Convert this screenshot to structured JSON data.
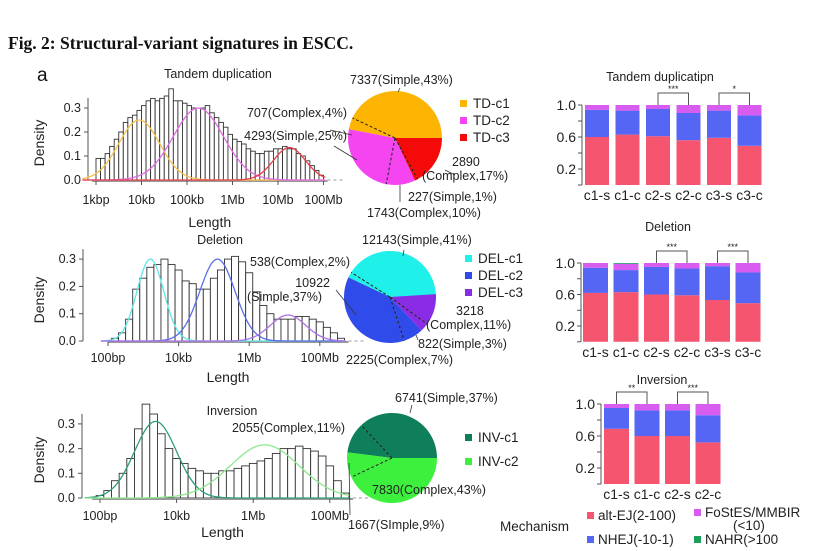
{
  "figure": {
    "title": "Fig. 2: Structural-variant signatures in ESCC.",
    "panel_label": "a"
  },
  "chart_data": [
    {
      "type": "bar",
      "subtype": "histogram",
      "title": "Tandem duplication",
      "xlabel": "Length",
      "ylabel": "Density",
      "x_scale": "log10",
      "xticks": [
        {
          "log10": 3,
          "label": "1kbp"
        },
        {
          "log10": 4,
          "label": "10kb"
        },
        {
          "log10": 5,
          "label": "100kb"
        },
        {
          "log10": 6,
          "label": "1Mb"
        },
        {
          "log10": 7,
          "label": "10Mb"
        },
        {
          "log10": 8,
          "label": "100Mb"
        }
      ],
      "yticks": [
        {
          "value": 0,
          "label": "0.0"
        },
        {
          "value": 0.1,
          "label": "0.1"
        },
        {
          "value": 0.2,
          "label": "0.2"
        },
        {
          "value": 0.3,
          "label": "0.3"
        }
      ],
      "ylim": [
        0,
        0.38
      ],
      "bins": {
        "log10_start": 3.0,
        "log10_width": 0.1,
        "density": [
          0.09,
          0.09,
          0.11,
          0.14,
          0.17,
          0.2,
          0.24,
          0.26,
          0.27,
          0.29,
          0.31,
          0.33,
          0.34,
          0.33,
          0.34,
          0.35,
          0.38,
          0.33,
          0.33,
          0.32,
          0.31,
          0.3,
          0.3,
          0.3,
          0.31,
          0.28,
          0.26,
          0.24,
          0.22,
          0.19,
          0.17,
          0.16,
          0.15,
          0.13,
          0.12,
          0.11,
          0.11,
          0.12,
          0.12,
          0.13,
          0.13,
          0.14,
          0.13,
          0.13,
          0.11,
          0.1,
          0.08,
          0.06,
          0.04,
          0.02
        ]
      },
      "components": [
        {
          "name": "TD-c1",
          "color": "#F7C24A",
          "log10_mean": 3.95,
          "log10_sd": 0.45,
          "peak_density": 0.25
        },
        {
          "name": "TD-c2",
          "color": "#E36BE6",
          "log10_mean": 5.25,
          "log10_sd": 0.55,
          "peak_density": 0.3
        },
        {
          "name": "TD-c3",
          "color": "#E8404A",
          "log10_mean": 7.25,
          "log10_sd": 0.35,
          "peak_density": 0.135
        }
      ]
    },
    {
      "type": "pie",
      "clusters": [
        {
          "name": "TD-c1",
          "color": "#FDB402"
        },
        {
          "name": "TD-c2",
          "color": "#F545F0"
        },
        {
          "name": "TD-c3",
          "color": "#F50A0A"
        }
      ],
      "slices": [
        {
          "cluster": 0,
          "kind": "Simple",
          "count": 7337,
          "percent": 43,
          "label_lines": [
            "7337(Simple,43%)"
          ]
        },
        {
          "cluster": 0,
          "kind": "Complex",
          "count": 707,
          "percent": 4,
          "label_lines": [
            "707(Complex,4%)"
          ]
        },
        {
          "cluster": 1,
          "kind": "Simple",
          "count": 4293,
          "percent": 25,
          "label_lines": [
            "4293(Simple,25%)"
          ]
        },
        {
          "cluster": 1,
          "kind": "Complex",
          "count": 1743,
          "percent": 10,
          "label_lines": [
            "1743(Complex,10%)"
          ]
        },
        {
          "cluster": 2,
          "kind": "Simple",
          "count": 227,
          "percent": 1,
          "label_lines": [
            "227(Simple,1%)"
          ]
        },
        {
          "cluster": 2,
          "kind": "Complex",
          "count": 2890,
          "percent": 17,
          "label_lines": [
            "2890",
            "(Complex,17%)"
          ]
        }
      ]
    },
    {
      "type": "bar",
      "subtype": "histogram",
      "title": "Deletion",
      "xlabel": "Length",
      "ylabel": "Density",
      "x_scale": "log10",
      "xticks": [
        {
          "log10": 2,
          "label": "100bp"
        },
        {
          "log10": 4,
          "label": "10kb"
        },
        {
          "log10": 6,
          "label": "1Mb"
        },
        {
          "log10": 8,
          "label": "100Mb"
        }
      ],
      "yticks": [
        {
          "value": 0,
          "label": "0.0"
        },
        {
          "value": 0.1,
          "label": "0.1"
        },
        {
          "value": 0.2,
          "label": "0.2"
        },
        {
          "value": 0.3,
          "label": "0.3"
        }
      ],
      "ylim": [
        0,
        0.32
      ],
      "bins": {
        "log10_start": 2.1,
        "log10_width": 0.2,
        "density": [
          0.01,
          0.03,
          0.08,
          0.19,
          0.23,
          0.27,
          0.28,
          0.3,
          0.28,
          0.26,
          0.22,
          0.21,
          0.19,
          0.19,
          0.23,
          0.26,
          0.3,
          0.31,
          0.29,
          0.25,
          0.18,
          0.13,
          0.1,
          0.08,
          0.08,
          0.08,
          0.09,
          0.09,
          0.08,
          0.07,
          0.05,
          0.03,
          0.01
        ]
      },
      "components": [
        {
          "name": "DEL-c1",
          "color": "#5FE6E6",
          "log10_mean": 3.2,
          "log10_sd": 0.38,
          "peak_density": 0.3
        },
        {
          "name": "DEL-c2",
          "color": "#5A6FE8",
          "log10_mean": 5.1,
          "log10_sd": 0.5,
          "peak_density": 0.3
        },
        {
          "name": "DEL-c3",
          "color": "#B070E8",
          "log10_mean": 7.1,
          "log10_sd": 0.5,
          "peak_density": 0.095
        }
      ]
    },
    {
      "type": "pie",
      "clusters": [
        {
          "name": "DEL-c1",
          "color": "#1FF0EA"
        },
        {
          "name": "DEL-c2",
          "color": "#2F4BEA"
        },
        {
          "name": "DEL-c3",
          "color": "#8A2BE6"
        }
      ],
      "slices": [
        {
          "cluster": 0,
          "kind": "Simple",
          "count": 12143,
          "percent": 41,
          "label_lines": [
            "12143(Simple,41%)"
          ]
        },
        {
          "cluster": 0,
          "kind": "Complex",
          "count": 538,
          "percent": 2,
          "label_lines": [
            "538(Complex,2%)"
          ]
        },
        {
          "cluster": 1,
          "kind": "Simple",
          "count": 10922,
          "percent": 37,
          "label_lines": [
            "10922",
            "(Simple,37%)"
          ]
        },
        {
          "cluster": 1,
          "kind": "Complex",
          "count": 2225,
          "percent": 7,
          "label_lines": [
            "2225(Complex,7%)"
          ]
        },
        {
          "cluster": 2,
          "kind": "Simple",
          "count": 822,
          "percent": 3,
          "label_lines": [
            "822(Simple,3%)"
          ]
        },
        {
          "cluster": 2,
          "kind": "Complex",
          "count": 3218,
          "percent": 11,
          "label_lines": [
            "3218",
            "(Complex,11%)"
          ]
        }
      ]
    },
    {
      "type": "bar",
      "subtype": "histogram",
      "title": "Inversion",
      "xlabel": "Length",
      "ylabel": "Density",
      "x_scale": "log10",
      "xticks": [
        {
          "log10": 2,
          "label": "100bp"
        },
        {
          "log10": 4,
          "label": "10kb"
        },
        {
          "log10": 6,
          "label": "1Mb"
        },
        {
          "log10": 8,
          "label": "100Mb"
        }
      ],
      "yticks": [
        {
          "value": 0,
          "label": "0.0"
        },
        {
          "value": 0.1,
          "label": "0.1"
        },
        {
          "value": 0.2,
          "label": "0.2"
        },
        {
          "value": 0.3,
          "label": "0.3"
        }
      ],
      "ylim": [
        0,
        0.38
      ],
      "bins": {
        "log10_start": 1.9,
        "log10_width": 0.2,
        "density": [
          0.01,
          0.03,
          0.07,
          0.1,
          0.16,
          0.28,
          0.38,
          0.34,
          0.26,
          0.2,
          0.16,
          0.14,
          0.12,
          0.11,
          0.1,
          0.1,
          0.11,
          0.11,
          0.12,
          0.13,
          0.14,
          0.15,
          0.16,
          0.18,
          0.2,
          0.2,
          0.21,
          0.2,
          0.19,
          0.17,
          0.13,
          0.07,
          0.02
        ]
      },
      "components": [
        {
          "name": "INV-c1",
          "color": "#2E9E7A",
          "log10_mean": 3.45,
          "log10_sd": 0.55,
          "peak_density": 0.31
        },
        {
          "name": "INV-c2",
          "color": "#8EE88E",
          "log10_mean": 6.3,
          "log10_sd": 0.9,
          "peak_density": 0.215
        }
      ]
    },
    {
      "type": "pie",
      "clusters": [
        {
          "name": "INV-c1",
          "color": "#0E7F5A"
        },
        {
          "name": "INV-c2",
          "color": "#3DF03D"
        }
      ],
      "slices": [
        {
          "cluster": 0,
          "kind": "Simple",
          "count": 6741,
          "percent": 37,
          "label_lines": [
            "6741(Simple,37%)"
          ]
        },
        {
          "cluster": 0,
          "kind": "Complex",
          "count": 2055,
          "percent": 11,
          "label_lines": [
            "2055(Complex,11%)"
          ]
        },
        {
          "cluster": 1,
          "kind": "Simple",
          "count": 1667,
          "percent": 9,
          "label_lines": [
            "1667(SImple,9%)"
          ]
        },
        {
          "cluster": 1,
          "kind": "Complex",
          "count": 7830,
          "percent": 43,
          "label_lines": [
            "7830(Complex,43%)"
          ]
        }
      ]
    },
    {
      "type": "bar",
      "subtype": "stacked",
      "title": "Tandem duplicatipn",
      "categories": [
        "c1-s",
        "c1-c",
        "c2-s",
        "c2-c",
        "c3-s",
        "c3-c"
      ],
      "yticks": [
        {
          "value": 0.2,
          "label": "0.2"
        },
        {
          "value": 0.6,
          "label": "0.6"
        },
        {
          "value": 1.0,
          "label": "1.0"
        }
      ],
      "ylim": [
        0,
        1
      ],
      "series": [
        {
          "name": "alt-EJ(2-100)",
          "values": [
            0.6,
            0.63,
            0.61,
            0.56,
            0.59,
            0.49
          ]
        },
        {
          "name": "NHEJ(-10-1)",
          "values": [
            0.34,
            0.3,
            0.34,
            0.34,
            0.34,
            0.38
          ]
        },
        {
          "name": "FoStES/MMBIR(<10)",
          "values": [
            0.06,
            0.07,
            0.05,
            0.1,
            0.07,
            0.13
          ]
        },
        {
          "name": "NAHR(>100",
          "values": [
            0,
            0,
            0,
            0,
            0,
            0
          ]
        }
      ],
      "significance": [
        {
          "from": 2,
          "to": 3,
          "label": "***"
        },
        {
          "from": 4,
          "to": 5,
          "label": "*"
        }
      ]
    },
    {
      "type": "bar",
      "subtype": "stacked",
      "title": "Deletion",
      "categories": [
        "c1-s",
        "c1-c",
        "c2-s",
        "c2-c",
        "c3-s",
        "c3-c"
      ],
      "yticks": [
        {
          "value": 0.2,
          "label": "0.2"
        },
        {
          "value": 0.6,
          "label": "0.6"
        },
        {
          "value": 1.0,
          "label": "1.0"
        }
      ],
      "ylim": [
        0,
        1
      ],
      "series": [
        {
          "name": "alt-EJ(2-100)",
          "values": [
            0.62,
            0.63,
            0.6,
            0.59,
            0.53,
            0.49
          ]
        },
        {
          "name": "NHEJ(-10-1)",
          "values": [
            0.32,
            0.28,
            0.35,
            0.34,
            0.43,
            0.39
          ]
        },
        {
          "name": "FoStES/MMBIR(<10)",
          "values": [
            0.06,
            0.08,
            0.05,
            0.07,
            0.04,
            0.12
          ]
        },
        {
          "name": "NAHR(>100",
          "values": [
            0,
            0.01,
            0,
            0,
            0,
            0
          ]
        }
      ],
      "significance": [
        {
          "from": 2,
          "to": 3,
          "label": "***"
        },
        {
          "from": 4,
          "to": 5,
          "label": "***"
        }
      ]
    },
    {
      "type": "bar",
      "subtype": "stacked",
      "title": "Inversion",
      "categories": [
        "c1-s",
        "c1-c",
        "c2-s",
        "c2-c"
      ],
      "yticks": [
        {
          "value": 0.2,
          "label": "0.2"
        },
        {
          "value": 0.6,
          "label": "0.6"
        },
        {
          "value": 1.0,
          "label": "1.0"
        }
      ],
      "ylim": [
        0,
        1
      ],
      "series": [
        {
          "name": "alt-EJ(2-100)",
          "values": [
            0.69,
            0.6,
            0.6,
            0.52
          ]
        },
        {
          "name": "NHEJ(-10-1)",
          "values": [
            0.26,
            0.32,
            0.32,
            0.34
          ]
        },
        {
          "name": "FoStES/MMBIR(<10)",
          "values": [
            0.05,
            0.08,
            0.08,
            0.14
          ]
        },
        {
          "name": "NAHR(>100",
          "values": [
            0,
            0,
            0,
            0
          ]
        }
      ],
      "significance": [
        {
          "from": 0,
          "to": 1,
          "label": "**"
        },
        {
          "from": 2,
          "to": 3,
          "label": "***"
        }
      ]
    }
  ],
  "mechanism_legend": {
    "title": "Mechanism",
    "items": [
      {
        "label_lines": [
          "alt-EJ(2-100)"
        ],
        "color": "#F5556E"
      },
      {
        "label_lines": [
          "FoStES/MMBIR",
          "(<10)"
        ],
        "color": "#D95CF0"
      },
      {
        "label_lines": [
          "NHEJ(-10-1)"
        ],
        "color": "#5566F5"
      },
      {
        "label_lines": [
          "NAHR(>100"
        ],
        "color": "#1A9F5A"
      }
    ]
  }
}
